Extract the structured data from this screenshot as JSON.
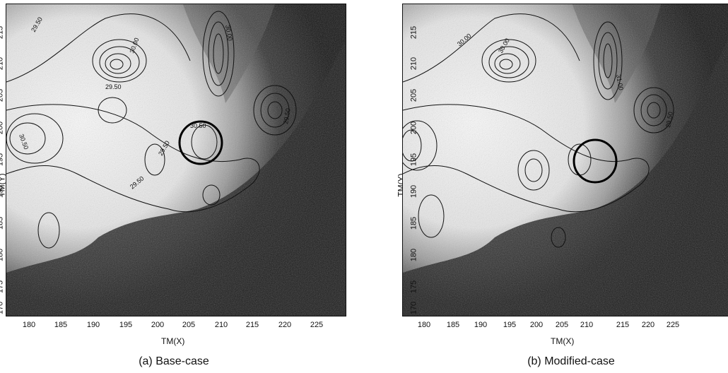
{
  "panels": [
    {
      "id": "a",
      "caption": "(a) Base-case",
      "xlabel": "TM(X)",
      "ylabel": "TM(Y)",
      "x_ticks": [
        "180",
        "185",
        "190",
        "195",
        "200",
        "205",
        "210",
        "215",
        "220",
        "225"
      ],
      "y_ticks": [
        "215",
        "210",
        "205",
        "200",
        "195",
        "190",
        "185",
        "180",
        "175",
        "170"
      ],
      "contour_labels": [
        "29.50",
        "30.50",
        "29.50",
        "30.00",
        "30.00",
        "30.50",
        "29.50",
        "29.50",
        "29.50"
      ]
    },
    {
      "id": "b",
      "caption": "(b) Modified-case",
      "xlabel": "TM(X)",
      "ylabel": "TM(Y)",
      "x_ticks": [
        "180",
        "185",
        "190",
        "195",
        "200",
        "205",
        "210",
        "215",
        "220",
        "225"
      ],
      "y_ticks": [
        "215",
        "210",
        "205",
        "200",
        "195",
        "190",
        "185",
        "180",
        "175",
        "170"
      ],
      "contour_labels": [
        "30.00",
        "30.00",
        "31.00",
        "29.50"
      ]
    }
  ],
  "colors": {
    "frame": "#111111",
    "sea_dark": "#1a1a1a",
    "land_light": "#f4f4f4",
    "circle": "#000000"
  },
  "icons": [
    "highlight-circle"
  ]
}
